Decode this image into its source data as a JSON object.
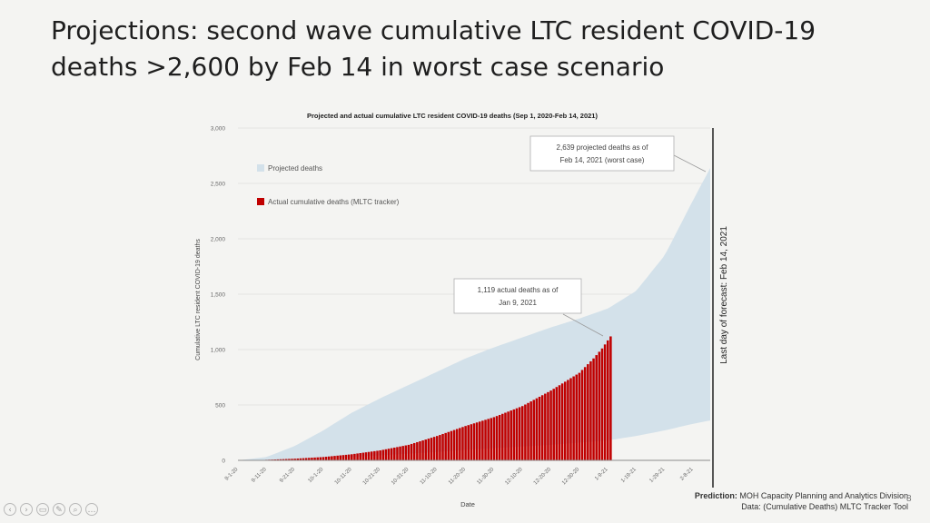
{
  "slide": {
    "title_line1": "Projections: second wave cumulative LTC resident COVID-19",
    "title_line2": "deaths >2,600 by Feb 14 in worst case scenario",
    "page_number": "8",
    "source_prefix": "Prediction:",
    "source_line1": " MOH Capacity Planning and Analytics Division",
    "source_line2": "Data: (Cumulative Deaths) MLTC Tracker Tool",
    "nav_icons": [
      "previous-icon",
      "next-icon",
      "notes-icon",
      "pen-icon",
      "zoom-icon",
      "more-icon"
    ]
  },
  "chart_data": {
    "type": "area+bar",
    "title": "Projected and actual cumulative LTC resident COVID-19 deaths (Sep 1, 2020-Feb 14, 2021)",
    "xlabel": "Date",
    "ylabel": "Cumulative LTC resident COVID-19 deaths",
    "ylim": [
      0,
      3000
    ],
    "yticks": [
      0,
      500,
      1000,
      1500,
      2000,
      2500,
      3000
    ],
    "ytick_labels": [
      "0",
      "500",
      "1,000",
      "1,500",
      "2,000",
      "2,500",
      "3,000"
    ],
    "xlim_days": [
      0,
      166
    ],
    "xtick_days": [
      0,
      10,
      20,
      30,
      40,
      50,
      60,
      70,
      80,
      90,
      100,
      110,
      120,
      130,
      140,
      150,
      160
    ],
    "xtick_labels": [
      "9-1-20",
      "9-11-20",
      "9-21-20",
      "10-1-20",
      "10-11-20",
      "10-21-20",
      "10-31-20",
      "11-10-20",
      "11-20-20",
      "11-30-20",
      "12-10-20",
      "12-20-20",
      "12-30-20",
      "1-9-21",
      "1-19-21",
      "1-29-21",
      "2-8-21"
    ],
    "legend": [
      {
        "name": "Projected deaths",
        "color": "#d3e1ea"
      },
      {
        "name": "Actual cumulative deaths (MLTC tracker)",
        "color": "#c00000"
      }
    ],
    "projected_band": {
      "day": [
        0,
        10,
        20,
        30,
        40,
        50,
        60,
        70,
        80,
        90,
        100,
        110,
        120,
        130,
        140,
        150,
        160,
        166
      ],
      "upper": [
        0,
        30,
        130,
        270,
        430,
        560,
        680,
        800,
        920,
        1020,
        1110,
        1200,
        1280,
        1370,
        1530,
        1850,
        2350,
        2639
      ],
      "lower": [
        0,
        0,
        5,
        15,
        30,
        45,
        60,
        75,
        95,
        110,
        125,
        140,
        160,
        180,
        220,
        270,
        330,
        360
      ]
    },
    "actual_deaths": {
      "day": [
        10,
        20,
        30,
        40,
        50,
        60,
        70,
        80,
        90,
        100,
        105,
        110,
        115,
        120,
        125,
        128,
        131
      ],
      "values": [
        5,
        15,
        30,
        55,
        90,
        140,
        220,
        310,
        390,
        490,
        560,
        630,
        710,
        790,
        920,
        1010,
        1119
      ]
    },
    "forecast_line_day": 166,
    "forecast_line_label": "Last day of forecast: Feb 14, 2021",
    "annotations": [
      {
        "text_line1": "2,639 projected deaths as of",
        "text_line2": "Feb 14, 2021 (worst case)"
      },
      {
        "text_line1": "1,119 actual deaths as of",
        "text_line2": "Jan 9, 2021"
      }
    ]
  }
}
